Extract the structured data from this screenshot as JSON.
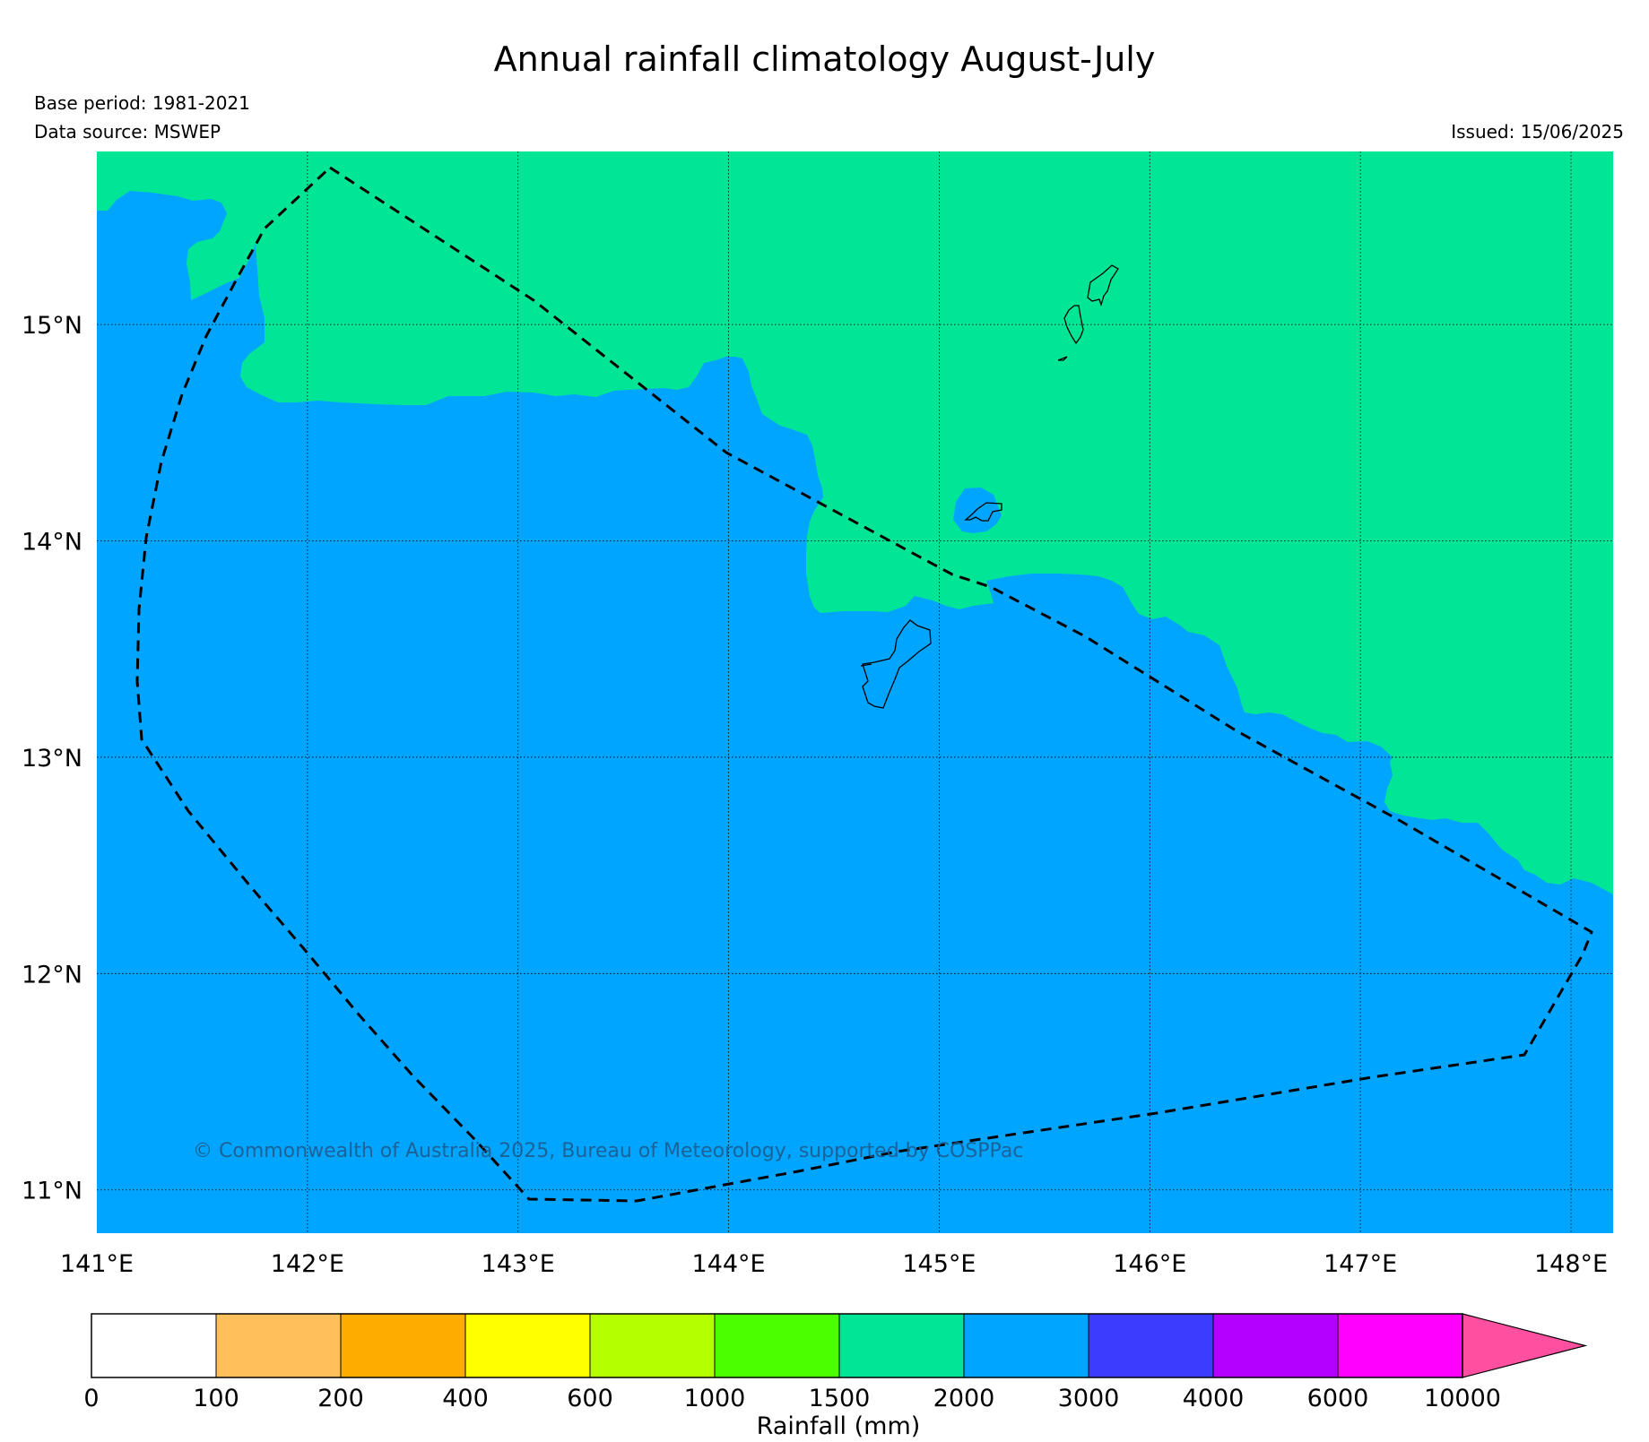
{
  "title": "Annual rainfall climatology August-July",
  "base_period": "Base period: 1981-2021",
  "data_source": "Data source: MSWEP",
  "issued": "Issued: 15/06/2025",
  "copyright": "© Commonwealth of Australia 2025, Bureau of Meteorology, supported by COSPPac",
  "map": {
    "lon_range": [
      141,
      148.2
    ],
    "lat_range": [
      10.8,
      15.8
    ],
    "lon_ticks": [
      {
        "value": 141,
        "label": "141°E"
      },
      {
        "value": 142,
        "label": "142°E"
      },
      {
        "value": 143,
        "label": "143°E"
      },
      {
        "value": 144,
        "label": "144°E"
      },
      {
        "value": 145,
        "label": "145°E"
      },
      {
        "value": 146,
        "label": "146°E"
      },
      {
        "value": 147,
        "label": "147°E"
      },
      {
        "value": 148,
        "label": "148°E"
      }
    ],
    "lat_ticks": [
      {
        "value": 15,
        "label": "15°N"
      },
      {
        "value": 14,
        "label": "14°N"
      },
      {
        "value": 13,
        "label": "13°N"
      },
      {
        "value": 12,
        "label": "12°N"
      },
      {
        "value": 11,
        "label": "11°N"
      }
    ],
    "regions": [
      {
        "range": "1500-2000",
        "color": "#00e596"
      },
      {
        "range": "2000-3000",
        "color": "#00a5ff"
      }
    ],
    "islands": [
      "Guam",
      "Rota",
      "Aguijan",
      "Tinian",
      "Saipan"
    ],
    "boundary": "dashed EEZ outline"
  },
  "colorbar": {
    "label": "Rainfall (mm)",
    "ticks": [
      "0",
      "100",
      "200",
      "400",
      "600",
      "1000",
      "1500",
      "2000",
      "3000",
      "4000",
      "6000",
      "10000"
    ],
    "colors": [
      "#ffffff",
      "#ffbf5a",
      "#ffac00",
      "#ffff00",
      "#b4ff00",
      "#4bff00",
      "#00e596",
      "#00a5ff",
      "#3c3cff",
      "#b400ff",
      "#ff00ff"
    ],
    "extend_color": "#ff4fa0"
  }
}
